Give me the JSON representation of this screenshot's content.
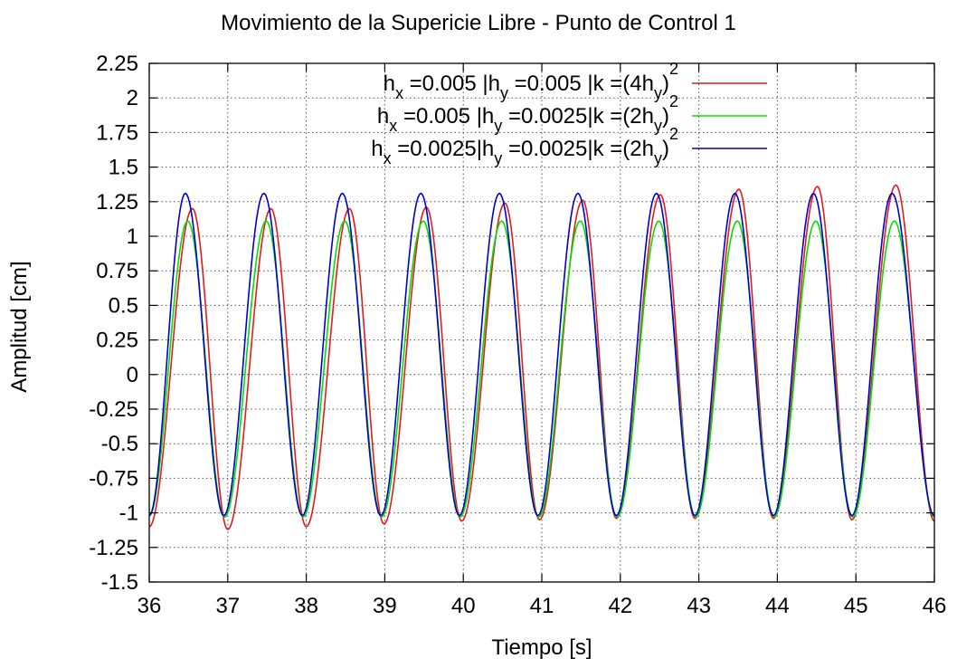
{
  "chart_data": {
    "type": "line",
    "title": "Movimiento de la Supericie Libre - Punto de Control 1",
    "xlabel": "Tiempo [s]",
    "ylabel": "Amplitud [cm]",
    "xlim": [
      36,
      46
    ],
    "ylim": [
      -1.5,
      2.25
    ],
    "x_ticks": [
      "36",
      "37",
      "38",
      "39",
      "40",
      "41",
      "42",
      "43",
      "44",
      "45",
      "46"
    ],
    "y_ticks": [
      "-1.5",
      "-1.25",
      "-1",
      "-0.75",
      "-0.5",
      "-0.25",
      "0",
      "0.25",
      "0.5",
      "0.75",
      "1",
      "1.25",
      "1.5",
      "1.75",
      "2",
      "2.25"
    ],
    "grid": true,
    "legend_position": "top-right",
    "period": 1.0,
    "series": [
      {
        "name": "h_x =0.005 |h_y =0.005  |k =(4h_y)^2",
        "legend_parts": [
          {
            "t": "h"
          },
          {
            "t": "x",
            "sub": true
          },
          {
            "t": " =0.005 |h"
          },
          {
            "t": "y",
            "sub": true
          },
          {
            "t": " =0.005  |k =(4h"
          },
          {
            "t": "y",
            "sub": true
          },
          {
            "t": ")"
          },
          {
            "t": "2",
            "sup": true
          }
        ],
        "color": "#e41a1c",
        "peak_times": [
          36.55,
          37.55,
          38.55,
          39.53,
          40.53,
          41.52,
          42.51,
          43.51,
          44.51,
          45.51
        ],
        "peak_values": [
          1.2,
          1.2,
          1.2,
          1.21,
          1.24,
          1.26,
          1.3,
          1.34,
          1.36,
          1.37
        ],
        "trough_times": [
          37.0,
          38.0,
          38.99,
          39.98,
          40.97,
          41.95,
          42.95,
          43.95,
          44.95
        ],
        "trough_values": [
          -1.12,
          -1.1,
          -1.08,
          -1.06,
          -1.05,
          -1.04,
          -1.04,
          -1.04,
          -1.05
        ],
        "start_value": -1.1,
        "end_value": -1.06
      },
      {
        "name": "h_x =0.005 |h_y =0.0025|k =(2h_y)^2",
        "legend_parts": [
          {
            "t": "h"
          },
          {
            "t": "x",
            "sub": true
          },
          {
            "t": " =0.005 |h"
          },
          {
            "t": "y",
            "sub": true
          },
          {
            "t": " =0.0025|k =(2h"
          },
          {
            "t": "y",
            "sub": true
          },
          {
            "t": ")"
          },
          {
            "t": "2",
            "sup": true
          }
        ],
        "color": "#00e000",
        "peak_times": [
          36.49,
          37.49,
          38.49,
          39.49,
          40.49,
          41.49,
          42.49,
          43.49,
          44.49,
          45.49
        ],
        "peak_values": [
          1.11,
          1.11,
          1.11,
          1.11,
          1.11,
          1.11,
          1.11,
          1.11,
          1.11,
          1.11
        ],
        "trough_times": [
          36.96,
          37.96,
          38.96,
          39.96,
          40.96,
          41.96,
          42.96,
          43.96,
          44.96
        ],
        "trough_values": [
          -1.03,
          -1.03,
          -1.03,
          -1.03,
          -1.03,
          -1.03,
          -1.03,
          -1.03,
          -1.03
        ],
        "start_value": -1.02,
        "end_value": -1.03
      },
      {
        "name": "h_x =0.0025|h_y =0.0025|k =(2h_y)^2",
        "legend_parts": [
          {
            "t": "h"
          },
          {
            "t": "x",
            "sub": true
          },
          {
            "t": " =0.0025|h"
          },
          {
            "t": "y",
            "sub": true
          },
          {
            "t": " =0.0025|k =(2h"
          },
          {
            "t": "y",
            "sub": true
          },
          {
            "t": ")"
          },
          {
            "t": "2",
            "sup": true
          }
        ],
        "color": "#0000cc",
        "peak_times": [
          36.46,
          37.46,
          38.46,
          39.46,
          40.46,
          41.46,
          42.46,
          43.46,
          44.46,
          45.46
        ],
        "peak_values": [
          1.31,
          1.31,
          1.31,
          1.31,
          1.31,
          1.31,
          1.31,
          1.31,
          1.31,
          1.31
        ],
        "trough_times": [
          36.95,
          37.95,
          38.95,
          39.95,
          40.95,
          41.95,
          42.95,
          43.95,
          44.95
        ],
        "trough_values": [
          -1.02,
          -1.02,
          -1.02,
          -1.02,
          -1.02,
          -1.02,
          -1.02,
          -1.02,
          -1.02
        ],
        "start_value": -1.02,
        "end_value": -1.02
      }
    ]
  }
}
